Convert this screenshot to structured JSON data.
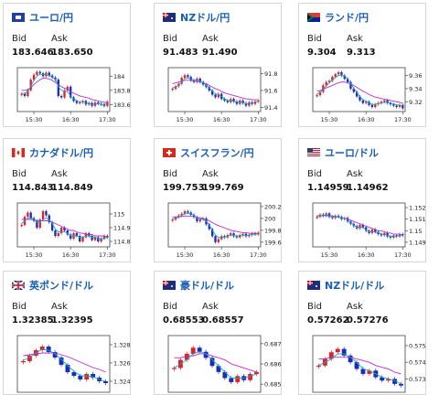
{
  "labels": {
    "bid": "Bid",
    "ask": "Ask"
  },
  "colors": {
    "title": "#1a5fb4",
    "up": "#e0202a",
    "down": "#1a2bb8",
    "ma_fast": "#18a9b8",
    "ma_slow": "#c02bd0",
    "border": "#d6d6d6"
  },
  "cards": [
    {
      "pair": "ユーロ/円",
      "flag": "eu-flag-icon",
      "bid": "183.646",
      "ask": "183.650",
      "chart_data": {
        "type": "line",
        "x_ticks": [
          "15:30",
          "16:30",
          "17:30"
        ],
        "y_ticks": [
          "184",
          "183.8",
          "183.6"
        ],
        "ylim": [
          183.5,
          184.12
        ],
        "candles": [
          183.75,
          183.72,
          183.8,
          183.95,
          184.02,
          184.06,
          184.04,
          184.0,
          184.05,
          184.01,
          183.98,
          183.95,
          183.72,
          183.7,
          183.8,
          183.85,
          183.7,
          183.65,
          183.62,
          183.63,
          183.65,
          183.6,
          183.62,
          183.58,
          183.63,
          183.61,
          183.6,
          183.58,
          183.64
        ],
        "ma_fast": [
          183.76,
          183.75,
          183.78,
          183.86,
          183.94,
          184.0,
          184.03,
          184.02,
          184.02,
          184.01,
          183.99,
          183.96,
          183.85,
          183.8,
          183.79,
          183.78,
          183.72,
          183.68,
          183.65,
          183.64,
          183.64,
          183.62,
          183.62,
          183.6,
          183.61,
          183.61,
          183.6,
          183.6,
          183.61
        ],
        "ma_slow": [
          183.8,
          183.8,
          183.81,
          183.84,
          183.88,
          183.92,
          183.95,
          183.97,
          183.97,
          183.96,
          183.94,
          183.91,
          183.88,
          183.85,
          183.83,
          183.81,
          183.78,
          183.76,
          183.74,
          183.72,
          183.71,
          183.7,
          183.69,
          183.67,
          183.66,
          183.65,
          183.64,
          183.63,
          183.63
        ]
      }
    },
    {
      "pair": "NZドル/円",
      "flag": "nz-flag-icon",
      "bid": "91.483",
      "ask": "91.490",
      "chart_data": {
        "type": "line",
        "x_ticks": [
          "15:30",
          "16:30",
          "17:30"
        ],
        "y_ticks": [
          "91.8",
          "91.6",
          "91.4"
        ],
        "ylim": [
          91.35,
          91.87
        ],
        "candles": [
          91.62,
          91.65,
          91.68,
          91.75,
          91.78,
          91.76,
          91.72,
          91.7,
          91.74,
          91.7,
          91.67,
          91.64,
          91.6,
          91.55,
          91.52,
          91.56,
          91.5,
          91.48,
          91.46,
          91.5,
          91.47,
          91.44,
          91.48,
          91.45,
          91.42,
          91.46,
          91.44,
          91.47,
          91.48
        ],
        "ma_fast": [
          91.63,
          91.64,
          91.66,
          91.7,
          91.74,
          91.75,
          91.74,
          91.72,
          91.72,
          91.71,
          91.69,
          91.66,
          91.63,
          91.59,
          91.56,
          91.55,
          91.53,
          91.5,
          91.48,
          91.48,
          91.47,
          91.46,
          91.46,
          91.46,
          91.44,
          91.45,
          91.45,
          91.46,
          91.47
        ],
        "ma_slow": [
          91.68,
          91.69,
          91.7,
          91.71,
          91.72,
          91.72,
          91.72,
          91.71,
          91.71,
          91.7,
          91.69,
          91.68,
          91.66,
          91.64,
          91.62,
          91.61,
          91.59,
          91.57,
          91.56,
          91.55,
          91.54,
          91.53,
          91.52,
          91.51,
          91.5,
          91.5,
          91.49,
          91.49,
          91.49
        ]
      }
    },
    {
      "pair": "ランド/円",
      "flag": "za-flag-icon",
      "bid": "9.304",
      "ask": "9.313",
      "chart_data": {
        "type": "line",
        "x_ticks": [
          "15:30",
          "16:30",
          "17:30"
        ],
        "y_ticks": [
          "9.36",
          "9.34",
          "9.32"
        ],
        "ylim": [
          9.305,
          9.372
        ],
        "candles": [
          9.33,
          9.335,
          9.345,
          9.35,
          9.352,
          9.358,
          9.362,
          9.365,
          9.36,
          9.355,
          9.35,
          9.34,
          9.335,
          9.328,
          9.322,
          9.318,
          9.32,
          9.315,
          9.312,
          9.316,
          9.318,
          9.32,
          9.322,
          9.318,
          9.316,
          9.314,
          9.312,
          9.315,
          9.31
        ],
        "ma_fast": [
          9.332,
          9.334,
          9.339,
          9.344,
          9.349,
          9.353,
          9.357,
          9.36,
          9.361,
          9.359,
          9.355,
          9.348,
          9.341,
          9.334,
          9.328,
          9.323,
          9.321,
          9.318,
          9.316,
          9.316,
          9.317,
          9.318,
          9.319,
          9.319,
          9.318,
          9.317,
          9.315,
          9.315,
          9.313
        ],
        "ma_slow": [
          9.336,
          9.337,
          9.339,
          9.341,
          9.343,
          9.345,
          9.347,
          9.349,
          9.35,
          9.35,
          9.349,
          9.347,
          9.345,
          9.342,
          9.339,
          9.336,
          9.334,
          9.331,
          9.329,
          9.327,
          9.326,
          9.325,
          9.324,
          9.323,
          9.322,
          9.321,
          9.32,
          9.319,
          9.318
        ]
      }
    },
    {
      "pair": "カナダドル/円",
      "flag": "ca-flag-icon",
      "bid": "114.843",
      "ask": "114.849",
      "chart_data": {
        "type": "line",
        "x_ticks": [
          "15:30",
          "16:30",
          "17:30"
        ],
        "y_ticks": [
          "115",
          "114.9",
          "114.8"
        ],
        "ylim": [
          114.76,
          115.08
        ],
        "candles": [
          114.92,
          114.98,
          115.01,
          114.97,
          114.95,
          114.9,
          114.96,
          115.02,
          114.99,
          114.94,
          114.88,
          114.84,
          114.86,
          114.9,
          114.88,
          114.85,
          114.82,
          114.86,
          114.84,
          114.8,
          114.83,
          114.86,
          114.84,
          114.81,
          114.83,
          114.8,
          114.82,
          114.84,
          114.83
        ],
        "ma_fast": [
          114.93,
          114.95,
          114.97,
          114.97,
          114.96,
          114.94,
          114.94,
          114.96,
          114.97,
          114.96,
          114.93,
          114.89,
          114.87,
          114.87,
          114.87,
          114.86,
          114.84,
          114.84,
          114.84,
          114.83,
          114.83,
          114.84,
          114.84,
          114.83,
          114.83,
          114.82,
          114.82,
          114.82,
          114.83
        ],
        "ma_slow": [
          114.96,
          114.96,
          114.96,
          114.96,
          114.96,
          114.95,
          114.95,
          114.95,
          114.95,
          114.95,
          114.94,
          114.93,
          114.92,
          114.91,
          114.9,
          114.89,
          114.88,
          114.88,
          114.87,
          114.86,
          114.86,
          114.85,
          114.85,
          114.85,
          114.84,
          114.84,
          114.84,
          114.84,
          114.83
        ]
      }
    },
    {
      "pair": "スイスフラン/円",
      "flag": "ch-flag-icon",
      "bid": "199.753",
      "ask": "199.769",
      "chart_data": {
        "type": "line",
        "x_ticks": [
          "15:30",
          "16:30",
          "17:30"
        ],
        "y_ticks": [
          "200.2",
          "200",
          "199.8",
          "199.6"
        ],
        "ylim": [
          199.52,
          200.26
        ],
        "candles": [
          199.98,
          200.02,
          200.05,
          200.08,
          200.12,
          200.1,
          200.06,
          200.02,
          199.95,
          199.98,
          200.0,
          199.9,
          199.82,
          199.7,
          199.6,
          199.65,
          199.7,
          199.68,
          199.72,
          199.75,
          199.7,
          199.68,
          199.72,
          199.74,
          199.7,
          199.72,
          199.75,
          199.73,
          199.76
        ],
        "ma_fast": [
          199.99,
          200.0,
          200.02,
          200.05,
          200.08,
          200.09,
          200.08,
          200.05,
          200.01,
          199.99,
          199.99,
          199.95,
          199.89,
          199.8,
          199.72,
          199.68,
          199.68,
          199.68,
          199.7,
          199.72,
          199.71,
          199.7,
          199.71,
          199.72,
          199.71,
          199.72,
          199.73,
          199.73,
          199.74
        ],
        "ma_slow": [
          200.02,
          200.02,
          200.03,
          200.03,
          200.04,
          200.04,
          200.04,
          200.03,
          200.02,
          200.01,
          200.0,
          199.98,
          199.96,
          199.93,
          199.9,
          199.88,
          199.86,
          199.84,
          199.82,
          199.8,
          199.79,
          199.78,
          199.77,
          199.76,
          199.76,
          199.75,
          199.75,
          199.75,
          199.75
        ]
      }
    },
    {
      "pair": "ユーロ/ドル",
      "flag": "us-flag-icon",
      "bid": "1.14959",
      "ask": "1.14962",
      "chart_data": {
        "type": "line",
        "x_ticks": [
          "15:30",
          "16:30",
          "17:30"
        ],
        "y_ticks": [
          "1.152",
          "1.151",
          "1.15",
          "1.149"
        ],
        "ylim": [
          1.1486,
          1.1524
        ],
        "candles": [
          1.1512,
          1.1514,
          1.1513,
          1.1515,
          1.1512,
          1.1511,
          1.1513,
          1.1512,
          1.151,
          1.1511,
          1.1508,
          1.1506,
          1.1504,
          1.1502,
          1.1505,
          1.1503,
          1.15,
          1.1498,
          1.1501,
          1.1499,
          1.1497,
          1.1496,
          1.1498,
          1.1495,
          1.1494,
          1.1496,
          1.1495,
          1.1497,
          1.1496
        ],
        "ma_fast": [
          1.1512,
          1.1513,
          1.1513,
          1.1514,
          1.1513,
          1.1512,
          1.1512,
          1.1512,
          1.1511,
          1.1511,
          1.1509,
          1.1507,
          1.1505,
          1.1503,
          1.1503,
          1.1503,
          1.1501,
          1.1499,
          1.1499,
          1.1499,
          1.1498,
          1.1497,
          1.1497,
          1.1496,
          1.1495,
          1.1495,
          1.1495,
          1.1496,
          1.1496
        ],
        "ma_slow": [
          1.1513,
          1.1513,
          1.1513,
          1.1513,
          1.1513,
          1.1513,
          1.1512,
          1.1512,
          1.1511,
          1.1511,
          1.151,
          1.1509,
          1.1508,
          1.1507,
          1.1506,
          1.1505,
          1.1504,
          1.1503,
          1.1502,
          1.1501,
          1.15,
          1.15,
          1.1499,
          1.1498,
          1.1498,
          1.1497,
          1.1497,
          1.1497,
          1.1496
        ]
      }
    },
    {
      "pair": "英ポンド/ドル",
      "flag": "gb-flag-icon",
      "bid": "1.32385",
      "ask": "1.32395",
      "chart_data": {
        "type": "line",
        "x_ticks": [],
        "y_ticks": [
          "1.328",
          "1.326",
          "1.324"
        ],
        "ylim": [
          1.3228,
          1.329
        ],
        "candles": [
          1.3262,
          1.3268,
          1.3274,
          1.3278,
          1.3272,
          1.3266,
          1.3258,
          1.325,
          1.3246,
          1.3242,
          1.3248,
          1.3244,
          1.324,
          1.3238
        ],
        "ma_fast": [
          1.3263,
          1.3266,
          1.3271,
          1.3275,
          1.3274,
          1.327,
          1.3264,
          1.3257,
          1.3251,
          1.3246,
          1.3246,
          1.3245,
          1.3242,
          1.324
        ],
        "ma_slow": [
          1.3268,
          1.3269,
          1.327,
          1.3271,
          1.3271,
          1.3271,
          1.3269,
          1.3267,
          1.3264,
          1.3261,
          1.3258,
          1.3255,
          1.3253,
          1.325
        ]
      }
    },
    {
      "pair": "豪ドル/ドル",
      "flag": "au-flag-icon",
      "bid": "0.68553",
      "ask": "0.68557",
      "chart_data": {
        "type": "line",
        "x_ticks": [],
        "y_ticks": [
          "0.687",
          "0.686",
          "0.685"
        ],
        "ylim": [
          0.6846,
          0.6874
        ],
        "candles": [
          0.6858,
          0.6862,
          0.6865,
          0.6868,
          0.6866,
          0.6863,
          0.6859,
          0.6856,
          0.6853,
          0.6851,
          0.6854,
          0.6852,
          0.6855,
          0.6856
        ],
        "ma_fast": [
          0.6858,
          0.686,
          0.6862,
          0.6865,
          0.6866,
          0.6865,
          0.6862,
          0.6859,
          0.6856,
          0.6853,
          0.6853,
          0.6853,
          0.6854,
          0.6855
        ],
        "ma_slow": [
          0.6863,
          0.6863,
          0.6864,
          0.6864,
          0.6865,
          0.6865,
          0.6864,
          0.6863,
          0.6862,
          0.686,
          0.6859,
          0.6858,
          0.6857,
          0.6856
        ]
      }
    },
    {
      "pair": "NZドル/ドル",
      "flag": "nz-flag-icon",
      "bid": "0.57262",
      "ask": "0.57276",
      "chart_data": {
        "type": "line",
        "x_ticks": [],
        "y_ticks": [
          "0.575",
          "0.574",
          "0.573"
        ],
        "ylim": [
          0.5722,
          0.5756
        ],
        "candles": [
          0.5738,
          0.5742,
          0.5746,
          0.5748,
          0.5744,
          0.574,
          0.5736,
          0.5733,
          0.5735,
          0.5731,
          0.5729,
          0.573,
          0.5727,
          0.5726
        ],
        "ma_fast": [
          0.5738,
          0.574,
          0.5742,
          0.5745,
          0.5745,
          0.5743,
          0.574,
          0.5736,
          0.5735,
          0.5733,
          0.5731,
          0.573,
          0.5729,
          0.5727
        ],
        "ma_slow": [
          0.5742,
          0.5742,
          0.5743,
          0.5743,
          0.5743,
          0.5743,
          0.5742,
          0.5741,
          0.574,
          0.5738,
          0.5737,
          0.5736,
          0.5734,
          0.5733
        ]
      }
    }
  ]
}
